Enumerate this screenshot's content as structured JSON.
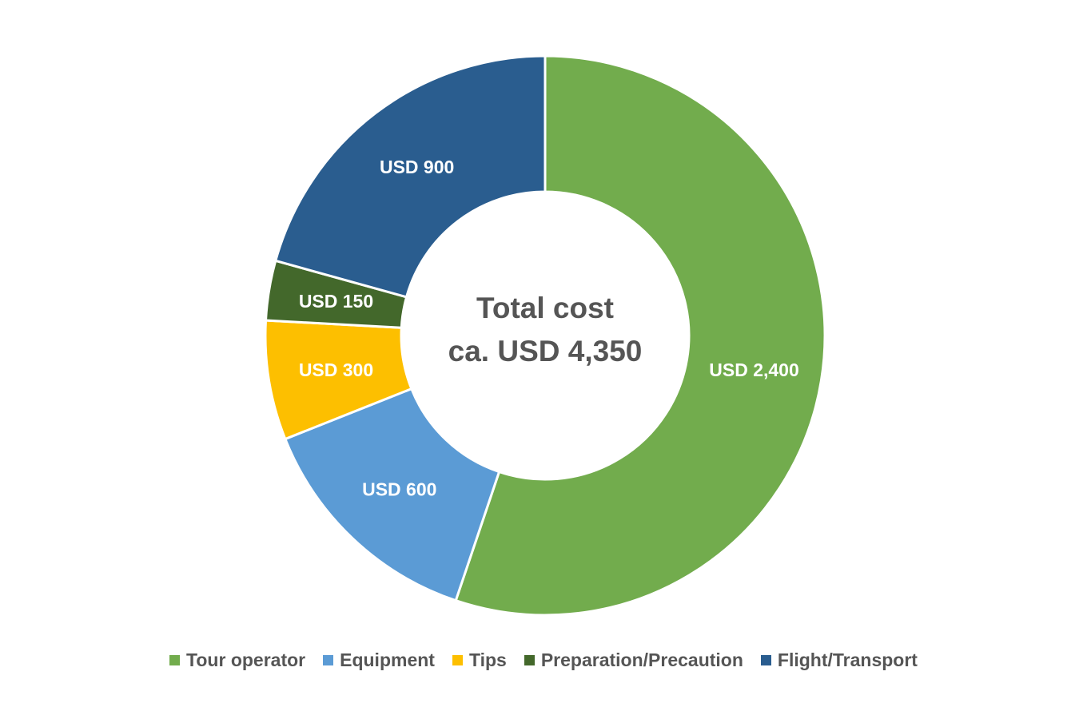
{
  "chart_data": {
    "type": "pie",
    "variant": "donut",
    "title": "",
    "center_label": [
      "Total cost",
      "ca. USD 4,350"
    ],
    "categories": [
      "Tour operator",
      "Equipment",
      "Tips",
      "Preparation/Precaution",
      "Flight/Transport"
    ],
    "values": [
      2400,
      600,
      300,
      150,
      900
    ],
    "data_labels": [
      "USD 2,400",
      "USD 600",
      "USD 300",
      "USD 150",
      "USD 900"
    ],
    "colors": [
      "#72ac4d",
      "#5b9bd5",
      "#fdbf00",
      "#43682b",
      "#2a5d8f"
    ],
    "legend_position": "bottom",
    "start_angle_deg": 0,
    "direction": "clockwise"
  }
}
